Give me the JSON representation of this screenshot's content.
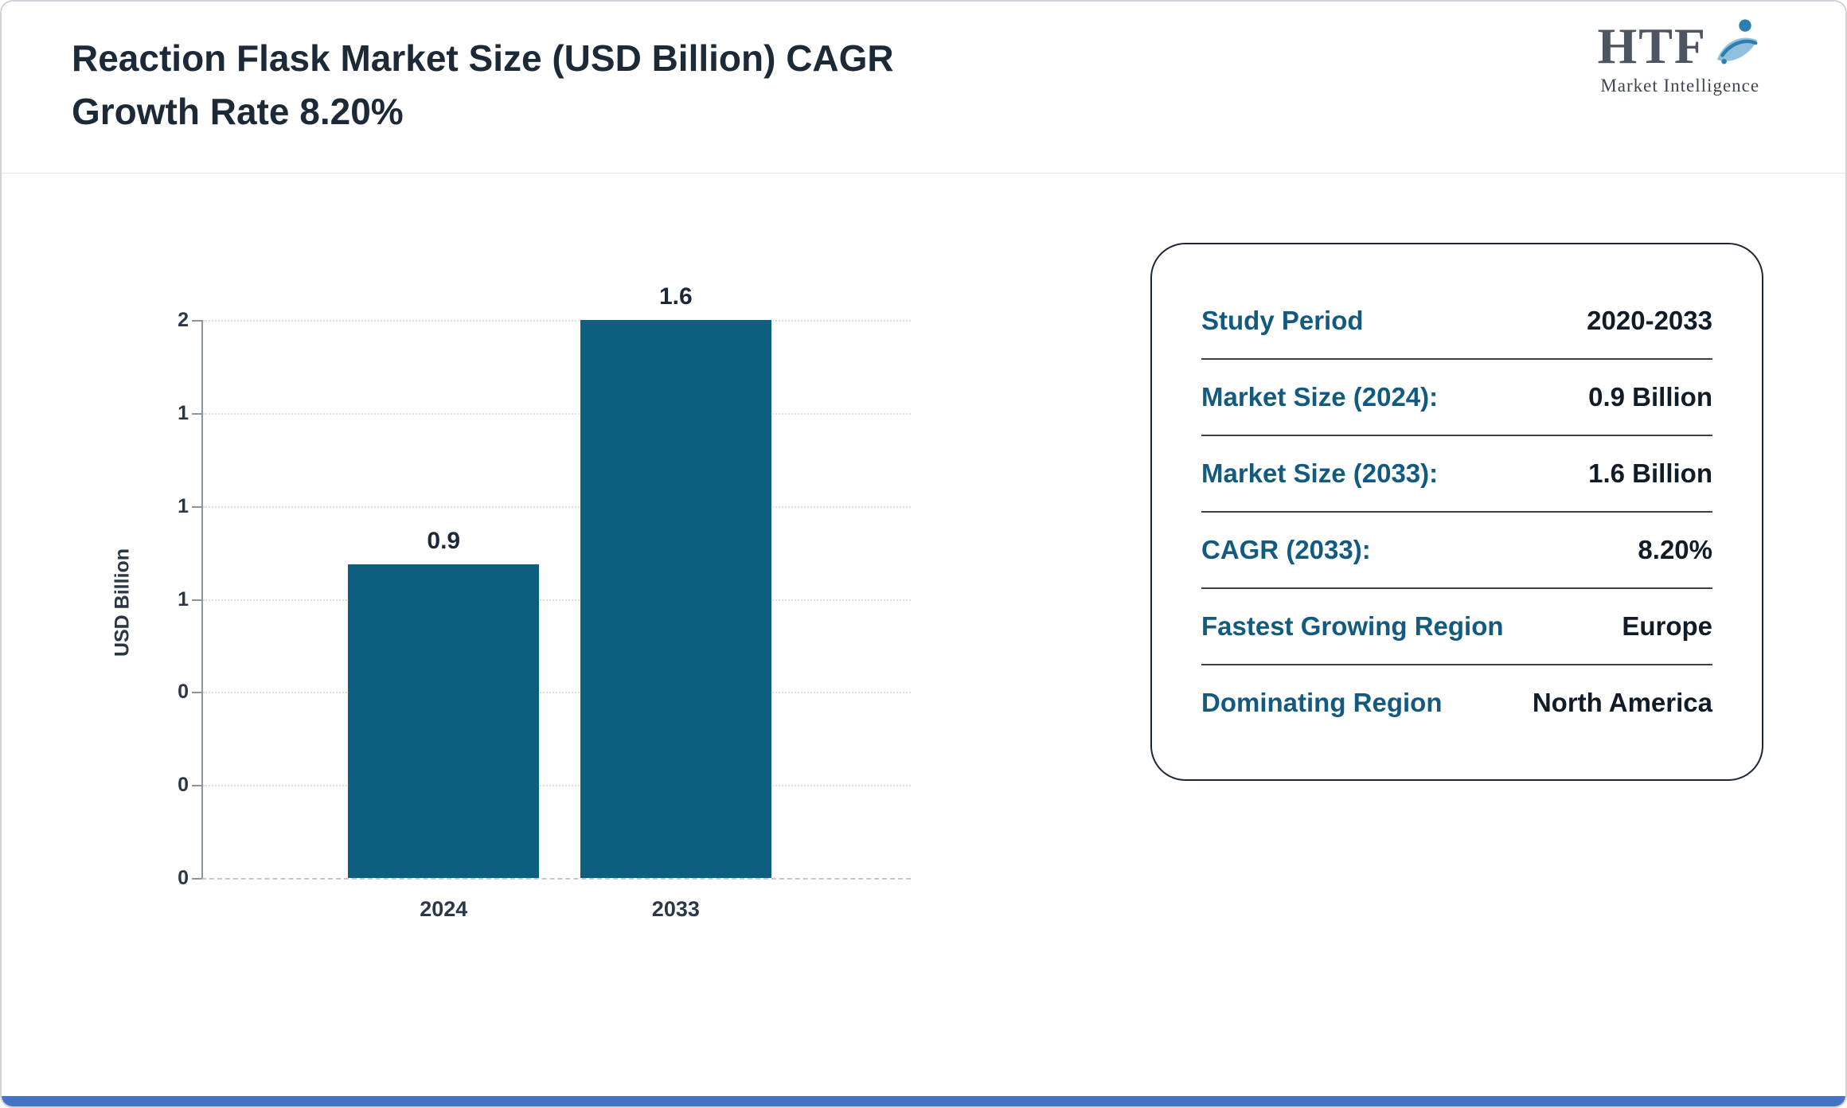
{
  "page": {
    "title_line1": "Reaction Flask Market Size (USD Billion) CAGR",
    "title_line2": "Growth Rate 8.20%"
  },
  "logo": {
    "text": "HTF",
    "subtext": "Market Intelligence"
  },
  "chart_data": {
    "type": "bar",
    "categories": [
      "2024",
      "2033"
    ],
    "values": [
      0.9,
      1.6
    ],
    "bar_labels": [
      "0.9",
      "1.6"
    ],
    "title": "Reaction Flask Market Size (USD Billion) CAGR Growth Rate 8.20%",
    "xlabel": "",
    "ylabel": "USD Billion",
    "ylim": [
      0,
      1.6
    ],
    "ytick_labels_top_to_bottom": [
      "2",
      "1",
      "1",
      "1",
      "0",
      "0",
      "0"
    ],
    "bar_color": "#0e5e80",
    "grid": true,
    "legend": false
  },
  "info_card": {
    "rows": [
      {
        "label": "Study Period",
        "value": "2020-2033"
      },
      {
        "label": "Market Size (2024):",
        "value": "0.9 Billion"
      },
      {
        "label": "Market Size (2033):",
        "value": "1.6 Billion"
      },
      {
        "label": "CAGR (2033):",
        "value": "8.20%"
      },
      {
        "label": "Fastest Growing Region",
        "value": "Europe"
      },
      {
        "label": "Dominating Region",
        "value": "North America"
      }
    ]
  },
  "colors": {
    "bar": "#0e5e80",
    "accent_label": "#135a80",
    "value_text": "#101c28",
    "title_text": "#1c2937",
    "footer_bar": "#4472c4"
  }
}
